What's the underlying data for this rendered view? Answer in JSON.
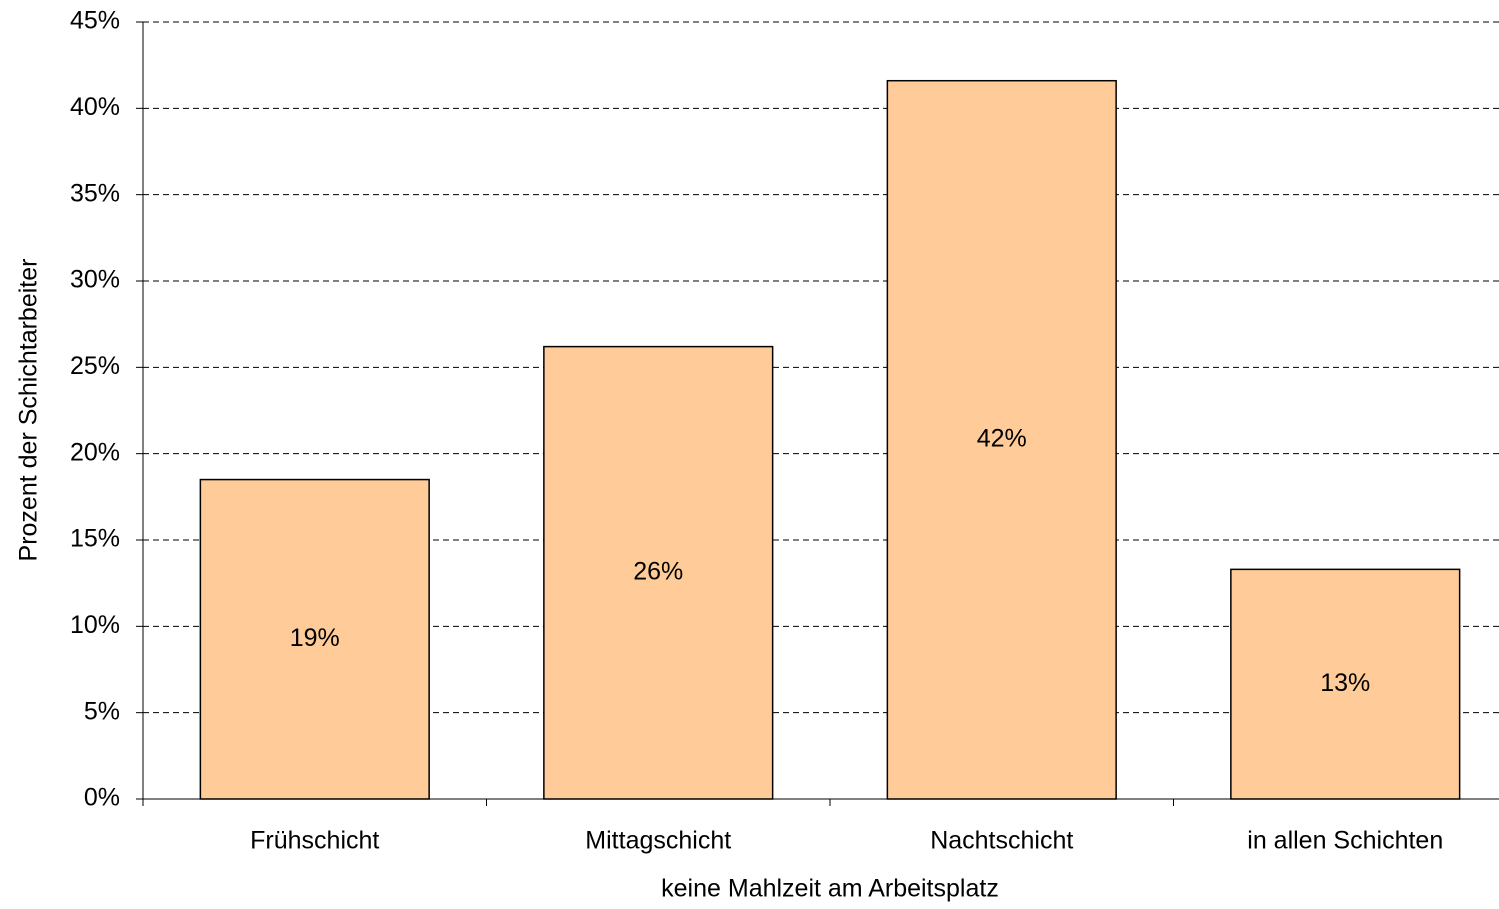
{
  "chart_data": {
    "type": "bar",
    "x_label": "keine Mahlzeit am Arbeitsplatz",
    "y_label": "Prozent der Schichtarbeiter",
    "categories": [
      "Frühschicht",
      "Mittagschicht",
      "Nachtschicht",
      "in allen Schichten"
    ],
    "values": [
      18.5,
      26.2,
      41.6,
      13.3
    ],
    "value_labels": [
      "19%",
      "26%",
      "42%",
      "13%"
    ],
    "color": "#ffcc99",
    "ylim": [
      0,
      45
    ],
    "yticks": [
      {
        "value": 0,
        "label": "0%"
      },
      {
        "value": 5,
        "label": "5%"
      },
      {
        "value": 10,
        "label": "10%"
      },
      {
        "value": 15,
        "label": "15%"
      },
      {
        "value": 20,
        "label": "20%"
      },
      {
        "value": 25,
        "label": "25%"
      },
      {
        "value": 30,
        "label": "30%"
      },
      {
        "value": 35,
        "label": "35%"
      },
      {
        "value": 40,
        "label": "40%"
      },
      {
        "value": 45,
        "label": "45%"
      }
    ],
    "grid": true
  }
}
